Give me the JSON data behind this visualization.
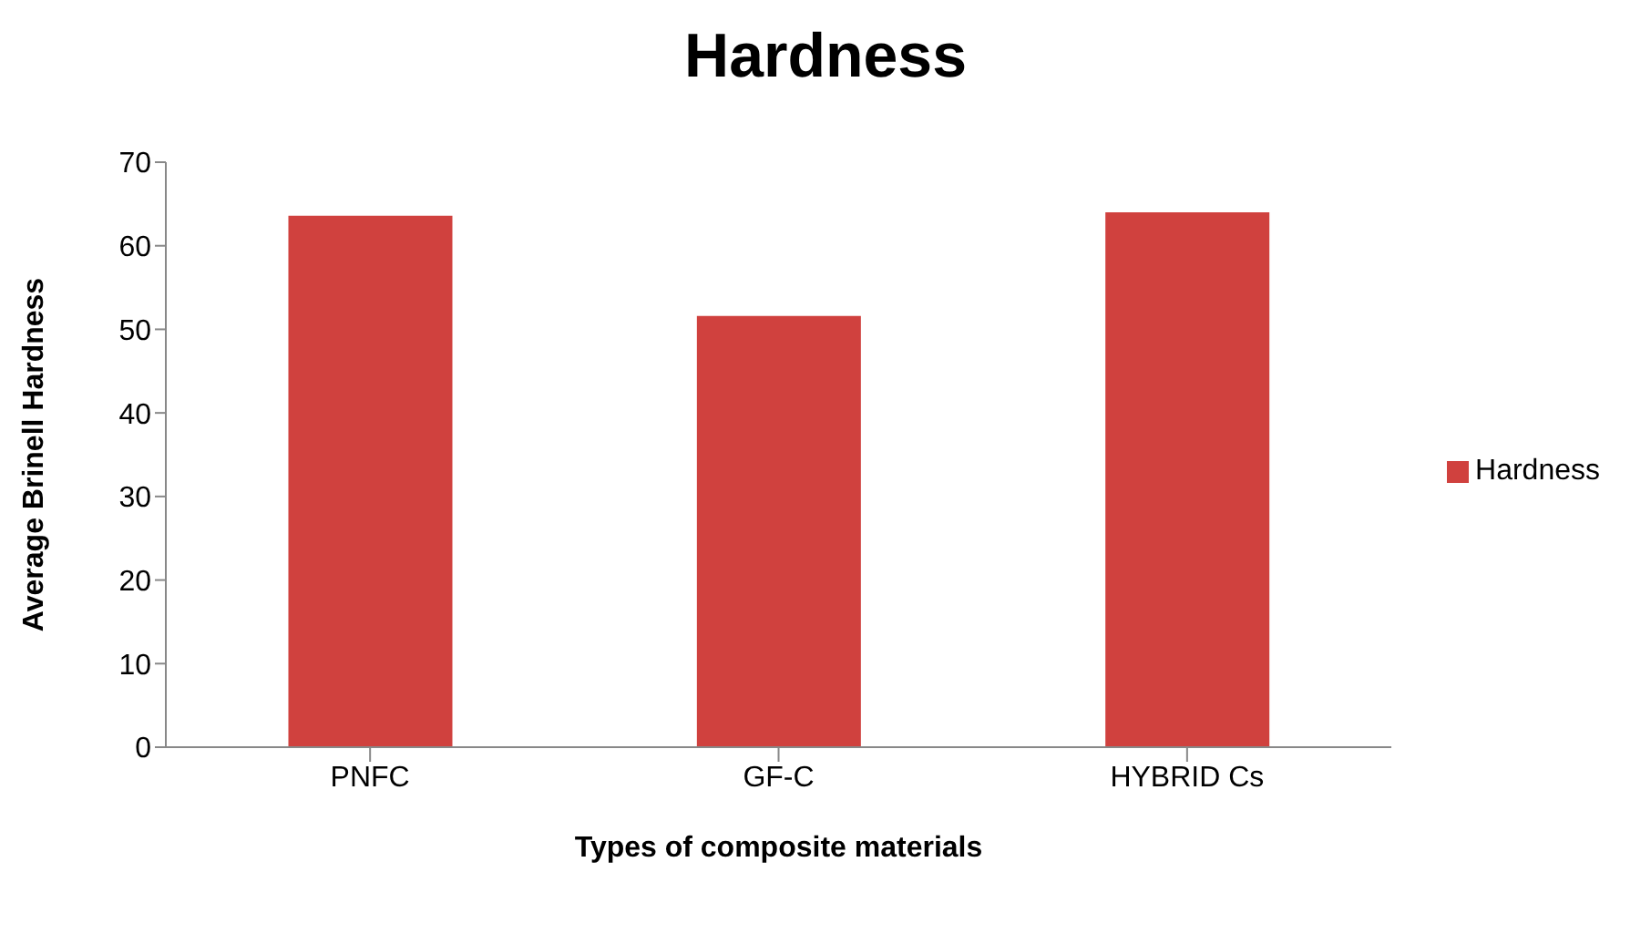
{
  "chart_data": {
    "type": "bar",
    "title": "Hardness",
    "xlabel": "Types of composite materials",
    "ylabel": "Average Brinell Hardness",
    "categories": [
      "PNFC",
      "GF-C",
      "HYBRID Cs"
    ],
    "series": [
      {
        "name": "Hardness",
        "color": "#d0413e",
        "values": [
          63.6,
          51.6,
          64.0
        ]
      }
    ],
    "ylim": [
      0,
      70
    ],
    "yticks": [
      0,
      10,
      20,
      30,
      40,
      50,
      60,
      70
    ],
    "grid": false,
    "legend": "right"
  }
}
